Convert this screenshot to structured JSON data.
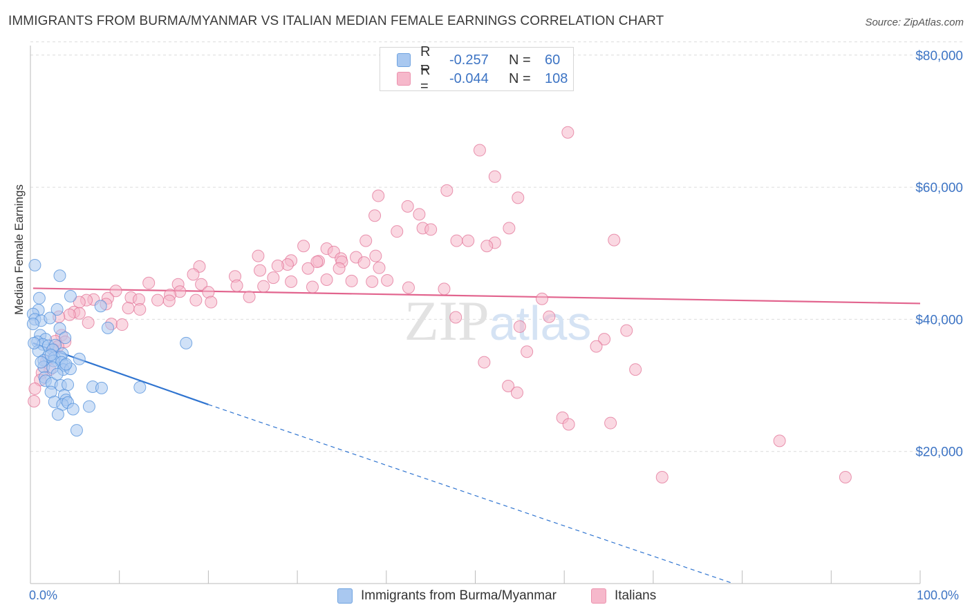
{
  "title": "IMMIGRANTS FROM BURMA/MYANMAR VS ITALIAN MEDIAN FEMALE EARNINGS CORRELATION CHART",
  "source": "Source: ZipAtlas.com",
  "watermark": "ZIPatlas",
  "legend": {
    "rows": [
      {
        "r_label": "R =",
        "r_value": "-0.257",
        "n_label": "N =",
        "n_value": "60",
        "color": "#a9c8f0"
      },
      {
        "r_label": "R =",
        "r_value": "-0.044",
        "n_label": "N =",
        "n_value": "108",
        "color": "#f6b8cb"
      }
    ]
  },
  "bottom_legend": [
    {
      "label": "Immigrants from Burma/Myanmar",
      "color": "#a9c8f0"
    },
    {
      "label": "Italians",
      "color": "#f6b8cb"
    }
  ],
  "axis": {
    "ylabel": "Median Female Earnings",
    "x_min_label": "0.0%",
    "x_max_label": "100.0%",
    "y_ticks": [
      "$20,000",
      "$40,000",
      "$60,000",
      "$80,000"
    ]
  },
  "chart_data": {
    "type": "scatter",
    "xlabel": "",
    "ylabel": "Median Female Earnings",
    "xlim": [
      0,
      100
    ],
    "ylim": [
      0,
      82000
    ],
    "y_ticks": [
      20000,
      40000,
      60000,
      80000
    ],
    "grid": "horizontal dashed",
    "legend_placement": "top-center",
    "series": [
      {
        "name": "Immigrants from Burma/Myanmar",
        "color": "#4f8fdb",
        "fill": "#a9c8f0",
        "trend": {
          "x0": 0.3,
          "y0": 36400,
          "x1": 20,
          "y1": 27100,
          "dashed_to_x": 79,
          "dashed_to_y": 0
        },
        "points": [
          [
            0.5,
            48200
          ],
          [
            3.3,
            46600
          ],
          [
            1.0,
            43200
          ],
          [
            0.9,
            41400
          ],
          [
            3.0,
            41500
          ],
          [
            4.5,
            43500
          ],
          [
            7.9,
            42000
          ],
          [
            0.3,
            40800
          ],
          [
            0.5,
            40000
          ],
          [
            1.2,
            39800
          ],
          [
            2.2,
            40200
          ],
          [
            0.3,
            39300
          ],
          [
            8.7,
            38700
          ],
          [
            3.3,
            38600
          ],
          [
            1.1,
            37600
          ],
          [
            1.7,
            37000
          ],
          [
            3.9,
            37200
          ],
          [
            0.8,
            36600
          ],
          [
            1.4,
            36200
          ],
          [
            2.0,
            36000
          ],
          [
            2.8,
            36100
          ],
          [
            17.5,
            36400
          ],
          [
            0.9,
            35200
          ],
          [
            2.5,
            35400
          ],
          [
            3.6,
            34800
          ],
          [
            2.0,
            34400
          ],
          [
            2.7,
            34200
          ],
          [
            3.4,
            34300
          ],
          [
            1.5,
            33800
          ],
          [
            2.6,
            33700
          ],
          [
            3.5,
            33500
          ],
          [
            5.5,
            34000
          ],
          [
            3.9,
            33000
          ],
          [
            1.5,
            32800
          ],
          [
            2.5,
            32700
          ],
          [
            3.7,
            32400
          ],
          [
            4.5,
            32500
          ],
          [
            1.6,
            31200
          ],
          [
            1.7,
            30700
          ],
          [
            2.4,
            30300
          ],
          [
            3.4,
            30000
          ],
          [
            4.2,
            30100
          ],
          [
            7.0,
            29800
          ],
          [
            8.0,
            29600
          ],
          [
            12.3,
            29700
          ],
          [
            2.3,
            29000
          ],
          [
            3.8,
            28500
          ],
          [
            2.7,
            27500
          ],
          [
            4.0,
            27800
          ],
          [
            3.6,
            27100
          ],
          [
            4.2,
            27400
          ],
          [
            6.6,
            26800
          ],
          [
            4.8,
            26400
          ],
          [
            3.1,
            25600
          ],
          [
            5.2,
            23200
          ],
          [
            0.4,
            36400
          ],
          [
            2.3,
            34600
          ],
          [
            4.0,
            33200
          ],
          [
            1.2,
            33500
          ],
          [
            3.0,
            31700
          ]
        ]
      },
      {
        "name": "Italians",
        "color": "#e27196",
        "fill": "#f6b8cb",
        "trend": {
          "x0": 0.3,
          "y0": 44700,
          "x1": 100,
          "y1": 42400
        },
        "points": [
          [
            50.5,
            65600
          ],
          [
            60.4,
            68300
          ],
          [
            52.2,
            61600
          ],
          [
            54.8,
            58400
          ],
          [
            46.8,
            59500
          ],
          [
            42.4,
            57100
          ],
          [
            39.1,
            58700
          ],
          [
            43.7,
            55900
          ],
          [
            38.7,
            55700
          ],
          [
            44.1,
            53800
          ],
          [
            41.2,
            53300
          ],
          [
            45.0,
            53600
          ],
          [
            53.8,
            53800
          ],
          [
            52.2,
            51600
          ],
          [
            37.7,
            51900
          ],
          [
            47.9,
            51900
          ],
          [
            49.2,
            51900
          ],
          [
            51.3,
            51100
          ],
          [
            65.6,
            52000
          ],
          [
            30.7,
            51100
          ],
          [
            33.3,
            50700
          ],
          [
            34.1,
            50200
          ],
          [
            36.6,
            49400
          ],
          [
            25.6,
            49600
          ],
          [
            29.3,
            48900
          ],
          [
            32.4,
            48800
          ],
          [
            34.9,
            49200
          ],
          [
            38.8,
            49600
          ],
          [
            37.5,
            48600
          ],
          [
            28.9,
            48300
          ],
          [
            27.8,
            48100
          ],
          [
            31.2,
            47700
          ],
          [
            32.2,
            48700
          ],
          [
            35.0,
            48700
          ],
          [
            39.2,
            47800
          ],
          [
            34.7,
            47700
          ],
          [
            25.8,
            47400
          ],
          [
            19.0,
            48000
          ],
          [
            18.3,
            46800
          ],
          [
            23.0,
            46500
          ],
          [
            27.3,
            46300
          ],
          [
            33.3,
            46000
          ],
          [
            29.3,
            45700
          ],
          [
            36.1,
            45800
          ],
          [
            38.4,
            45700
          ],
          [
            40.1,
            45900
          ],
          [
            13.3,
            45500
          ],
          [
            16.6,
            45300
          ],
          [
            19.2,
            45300
          ],
          [
            23.2,
            45100
          ],
          [
            26.2,
            45000
          ],
          [
            31.7,
            44900
          ],
          [
            42.5,
            44800
          ],
          [
            46.5,
            44600
          ],
          [
            9.6,
            44300
          ],
          [
            16.8,
            44200
          ],
          [
            20.0,
            44100
          ],
          [
            15.7,
            43700
          ],
          [
            11.3,
            43300
          ],
          [
            8.7,
            43200
          ],
          [
            7.1,
            43000
          ],
          [
            6.3,
            42900
          ],
          [
            5.5,
            42600
          ],
          [
            12.2,
            43000
          ],
          [
            14.3,
            42900
          ],
          [
            15.6,
            42800
          ],
          [
            18.6,
            42900
          ],
          [
            24.6,
            43400
          ],
          [
            20.3,
            42600
          ],
          [
            8.5,
            42300
          ],
          [
            11.0,
            41700
          ],
          [
            12.3,
            41500
          ],
          [
            4.9,
            41100
          ],
          [
            5.5,
            40900
          ],
          [
            4.4,
            40700
          ],
          [
            3.2,
            40400
          ],
          [
            9.1,
            39300
          ],
          [
            10.3,
            39200
          ],
          [
            6.5,
            39500
          ],
          [
            3.5,
            37600
          ],
          [
            3.9,
            36600
          ],
          [
            2.8,
            36700
          ],
          [
            3.1,
            35900
          ],
          [
            2.6,
            35400
          ],
          [
            1.8,
            33700
          ],
          [
            2.2,
            32400
          ],
          [
            1.3,
            31900
          ],
          [
            1.1,
            30800
          ],
          [
            0.5,
            29500
          ],
          [
            0.4,
            27600
          ],
          [
            47.8,
            40300
          ],
          [
            57.5,
            43100
          ],
          [
            58.3,
            40400
          ],
          [
            55.0,
            38900
          ],
          [
            64.5,
            37000
          ],
          [
            67.0,
            38300
          ],
          [
            63.6,
            35900
          ],
          [
            55.8,
            35100
          ],
          [
            68.0,
            32400
          ],
          [
            51.0,
            33500
          ],
          [
            53.7,
            29900
          ],
          [
            54.7,
            28900
          ],
          [
            59.8,
            25100
          ],
          [
            60.5,
            24100
          ],
          [
            65.2,
            24300
          ],
          [
            84.2,
            21600
          ],
          [
            91.6,
            16100
          ],
          [
            71.0,
            16100
          ]
        ]
      }
    ]
  }
}
